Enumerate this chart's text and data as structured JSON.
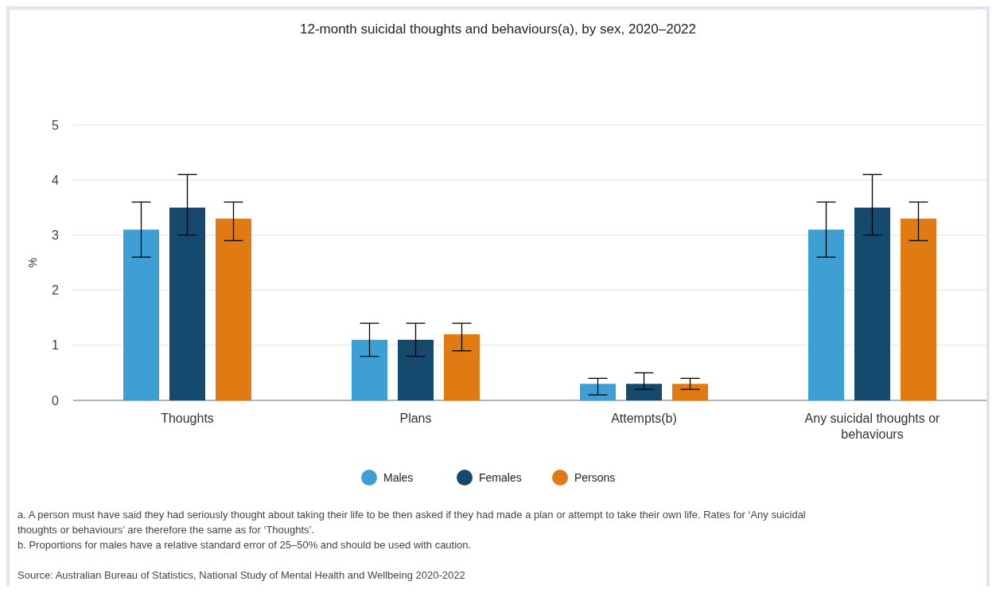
{
  "chart_data": {
    "type": "bar",
    "title": "12-month suicidal thoughts and behaviours(a), by sex, 2020–2022",
    "ylabel": "%",
    "categories": [
      "Thoughts",
      "Plans",
      "Attempts(b)",
      "Any suicidal thoughts or behaviours"
    ],
    "series": [
      {
        "name": "Males",
        "color": "#3e9fd5",
        "values": [
          3.1,
          1.1,
          0.3,
          3.1
        ],
        "errors": [
          [
            2.6,
            3.6
          ],
          [
            0.8,
            1.4
          ],
          [
            0.1,
            0.4
          ],
          [
            2.6,
            3.6
          ]
        ]
      },
      {
        "name": "Females",
        "color": "#154a6e",
        "values": [
          3.5,
          1.1,
          0.3,
          3.5
        ],
        "errors": [
          [
            3.0,
            4.1
          ],
          [
            0.8,
            1.4
          ],
          [
            0.2,
            0.5
          ],
          [
            3.0,
            4.1
          ]
        ]
      },
      {
        "name": "Persons",
        "color": "#e07b14",
        "values": [
          3.3,
          1.2,
          0.3,
          3.3
        ],
        "errors": [
          [
            2.9,
            3.6
          ],
          [
            0.9,
            1.4
          ],
          [
            0.2,
            0.4
          ],
          [
            2.9,
            3.6
          ]
        ]
      }
    ],
    "ylim": [
      0,
      5
    ],
    "yticks": [
      0,
      1,
      2,
      3,
      4,
      5
    ],
    "grid": "y",
    "legend": "bottom",
    "annotations": [
      "a. A person must have said they had seriously thought about taking their life to be then asked if they had made a plan or attempt to take their own life. Rates for ‘Any suicidal thoughts or behaviours’ are therefore the same as for ‘Thoughts’.",
      "b. Proportions for males have a relative standard error of 25–50% and should be used with caution.",
      "Source: Australian Bureau of Statistics, National Study of Mental Health and Wellbeing 2020-2022"
    ]
  }
}
